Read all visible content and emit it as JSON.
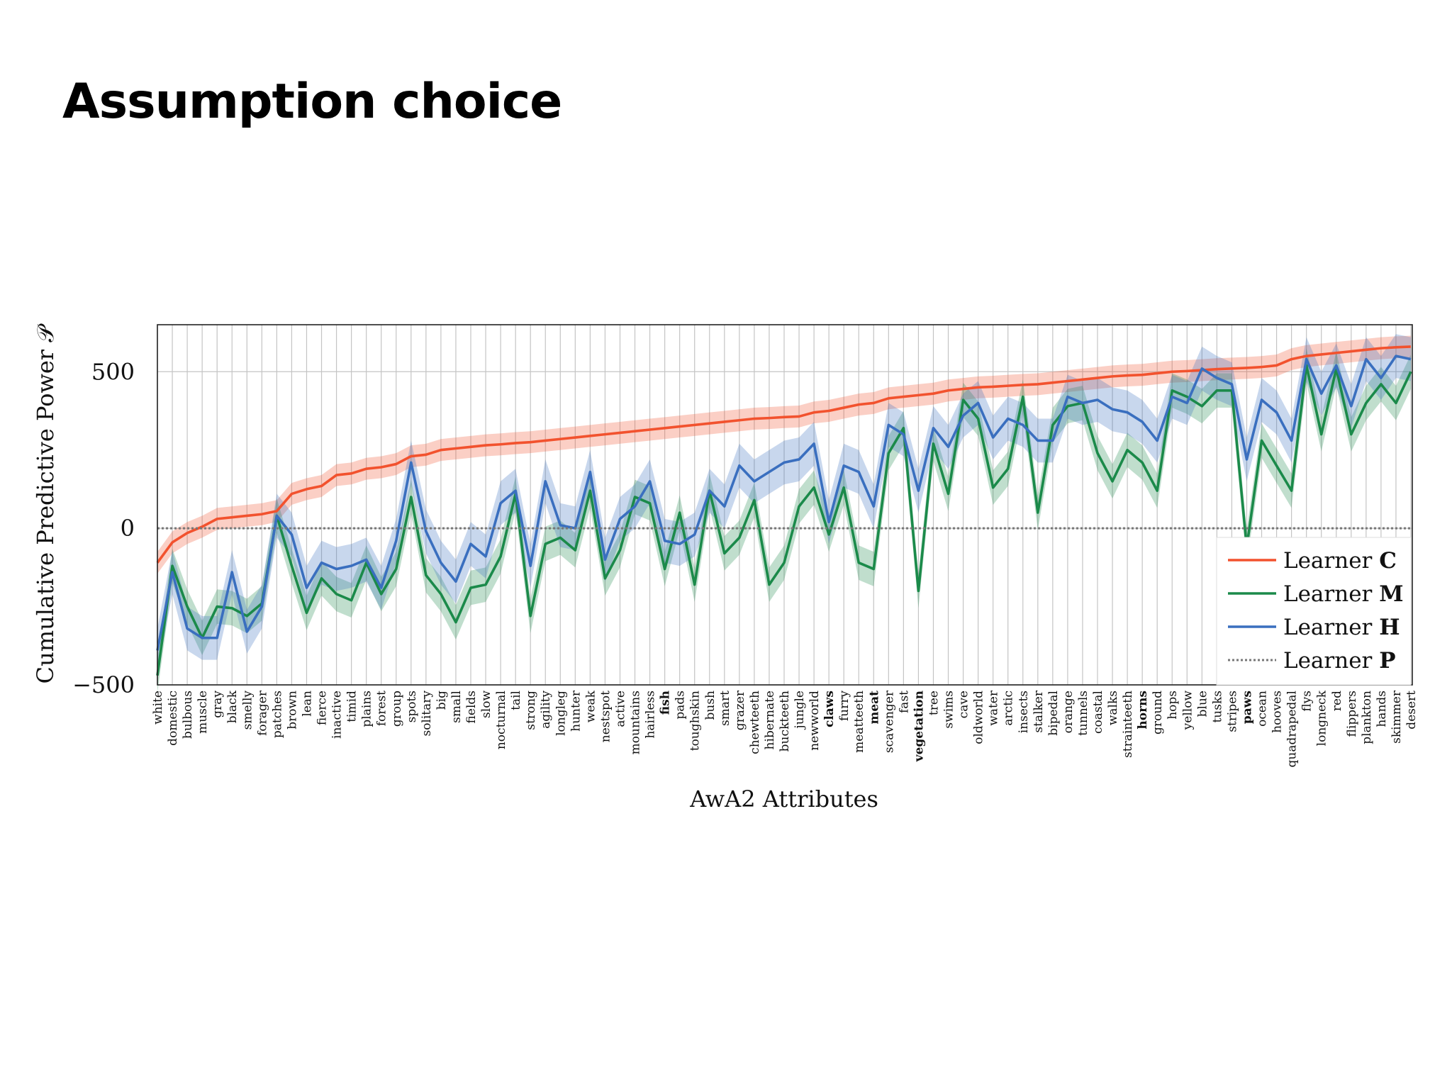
{
  "slide": {
    "title": "Assumption choice"
  },
  "chart_data": {
    "type": "line",
    "xlabel": "AwA2 Attributes",
    "ylabel": "Cumulative Predictive Power 𝒫",
    "ylim": [
      -500,
      650
    ],
    "yticks": [
      -500,
      0,
      500
    ],
    "ytick_labels": [
      "−500",
      "0",
      "500"
    ],
    "grid": true,
    "legend_position": "lower-right",
    "categories": [
      "white",
      "domestic",
      "bulbous",
      "muscle",
      "gray",
      "black",
      "smelly",
      "forager",
      "patches",
      "brown",
      "lean",
      "fierce",
      "inactive",
      "timid",
      "plains",
      "forest",
      "group",
      "spots",
      "solitary",
      "big",
      "small",
      "fields",
      "slow",
      "nocturnal",
      "tail",
      "strong",
      "agility",
      "longleg",
      "hunter",
      "weak",
      "nestspot",
      "active",
      "mountains",
      "hairless",
      "fish",
      "pads",
      "toughskin",
      "bush",
      "smart",
      "grazer",
      "chewteeth",
      "hibernate",
      "buckteeth",
      "jungle",
      "newworld",
      "claws",
      "furry",
      "meatteeth",
      "meat",
      "scavenger",
      "fast",
      "vegetation",
      "tree",
      "swims",
      "cave",
      "oldworld",
      "water",
      "arctic",
      "insects",
      "stalker",
      "bipedal",
      "orange",
      "tunnels",
      "coastal",
      "walks",
      "strainteeth",
      "horns",
      "ground",
      "hops",
      "yellow",
      "blue",
      "tusks",
      "stripes",
      "paws",
      "ocean",
      "hooves",
      "quadrapedal",
      "flys",
      "longneck",
      "red",
      "flippers",
      "plankton",
      "hands",
      "skimmer",
      "desert"
    ],
    "bold_categories": [
      "fish",
      "claws",
      "meat",
      "vegetation",
      "horns",
      "paws"
    ],
    "series": [
      {
        "name": "Learner C",
        "legend_label": "Learner",
        "legend_letter": "C",
        "color": "#f2522e",
        "values": [
          -110,
          -45,
          -15,
          5,
          30,
          35,
          40,
          45,
          55,
          110,
          125,
          135,
          170,
          175,
          190,
          195,
          205,
          230,
          235,
          250,
          255,
          260,
          265,
          268,
          272,
          275,
          280,
          285,
          290,
          295,
          300,
          305,
          310,
          315,
          320,
          325,
          330,
          335,
          340,
          345,
          350,
          352,
          355,
          357,
          370,
          375,
          385,
          395,
          400,
          415,
          420,
          425,
          430,
          440,
          445,
          450,
          452,
          455,
          458,
          460,
          465,
          470,
          475,
          480,
          485,
          488,
          490,
          495,
          500,
          502,
          505,
          508,
          510,
          512,
          515,
          520,
          540,
          550,
          555,
          560,
          565,
          570,
          575,
          578,
          580
        ],
        "band": 35
      },
      {
        "name": "Learner M",
        "legend_label": "Learner",
        "legend_letter": "M",
        "color": "#1b8a4a",
        "values": [
          -470,
          -120,
          -250,
          -350,
          -250,
          -255,
          -280,
          -240,
          40,
          -120,
          -270,
          -160,
          -210,
          -230,
          -110,
          -210,
          -130,
          100,
          -150,
          -210,
          -300,
          -190,
          -180,
          -90,
          110,
          -280,
          -50,
          -30,
          -70,
          120,
          -160,
          -70,
          100,
          80,
          -130,
          50,
          -180,
          120,
          -80,
          -30,
          90,
          -180,
          -110,
          70,
          130,
          -20,
          130,
          -110,
          -130,
          240,
          320,
          -200,
          270,
          110,
          410,
          350,
          130,
          190,
          420,
          50,
          330,
          390,
          400,
          240,
          150,
          250,
          210,
          120,
          440,
          420,
          390,
          440,
          440,
          -60,
          280,
          200,
          120,
          520,
          300,
          510,
          300,
          400,
          460,
          400,
          500
        ],
        "band": 55
      },
      {
        "name": "Learner H",
        "legend_label": "Learner",
        "legend_letter": "H",
        "color": "#3a6fbf",
        "values": [
          -390,
          -140,
          -320,
          -350,
          -350,
          -140,
          -330,
          -250,
          40,
          -20,
          -190,
          -110,
          -130,
          -120,
          -100,
          -190,
          -40,
          210,
          -10,
          -110,
          -170,
          -50,
          -90,
          80,
          120,
          -120,
          150,
          10,
          0,
          180,
          -100,
          30,
          70,
          150,
          -40,
          -50,
          -20,
          120,
          70,
          200,
          150,
          180,
          210,
          220,
          270,
          20,
          200,
          180,
          70,
          330,
          300,
          120,
          320,
          260,
          360,
          400,
          290,
          350,
          330,
          280,
          280,
          420,
          400,
          410,
          380,
          370,
          340,
          280,
          420,
          400,
          510,
          480,
          460,
          220,
          410,
          370,
          280,
          540,
          430,
          520,
          390,
          540,
          480,
          550,
          540
        ],
        "band": 70
      },
      {
        "name": "Learner P",
        "legend_label": "Learner",
        "legend_letter": "P",
        "color": "#777777",
        "dashed": true,
        "constant": 0
      }
    ]
  }
}
